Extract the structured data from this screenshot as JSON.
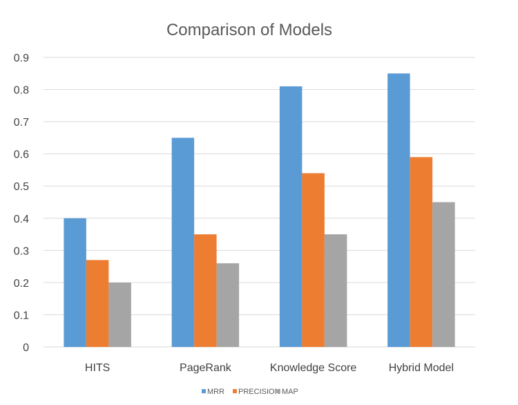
{
  "chart_data": {
    "type": "bar",
    "title": "Comparison of Models",
    "xlabel": "",
    "ylabel": "",
    "categories": [
      "HITS",
      "PageRank",
      "Knowledge Score",
      "Hybrid Model"
    ],
    "series": [
      {
        "name": "MRR",
        "color": "#5b9bd5",
        "values": [
          0.4,
          0.65,
          0.81,
          0.85
        ]
      },
      {
        "name": "PRECISION",
        "color": "#ed7d31",
        "values": [
          0.27,
          0.35,
          0.54,
          0.59
        ]
      },
      {
        "name": "MAP",
        "color": "#a5a5a5",
        "values": [
          0.2,
          0.26,
          0.35,
          0.45
        ]
      }
    ],
    "ylim": [
      0,
      0.9
    ],
    "yticks": [
      "0",
      "0.1",
      "0.2",
      "0.3",
      "0.4",
      "0.5",
      "0.6",
      "0.7",
      "0.8",
      "0.9"
    ],
    "grid": true,
    "legend_position": "bottom"
  }
}
